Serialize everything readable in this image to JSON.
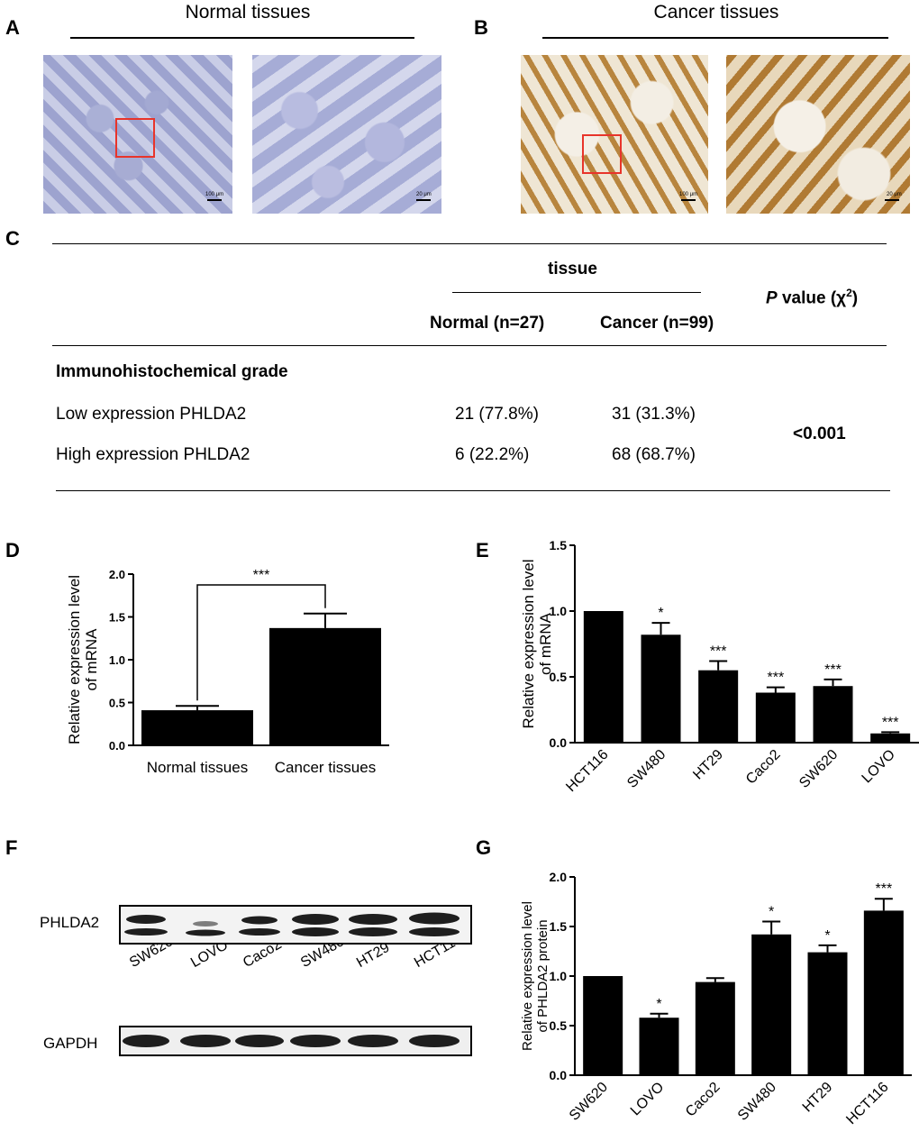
{
  "panels": {
    "A": {
      "letter": "A",
      "title": "Normal tissues",
      "scale_low": "100 μm",
      "scale_high": "20 μm"
    },
    "B": {
      "letter": "B",
      "title": "Cancer tissues",
      "scale_low": "100 μm",
      "scale_high": "20 μm"
    },
    "C": {
      "letter": "C"
    },
    "D": {
      "letter": "D"
    },
    "E": {
      "letter": "E"
    },
    "F": {
      "letter": "F"
    },
    "G": {
      "letter": "G"
    }
  },
  "table": {
    "group_header": "tissue",
    "col_normal": "Normal (n=27)",
    "col_cancer": "Cancer (n=99)",
    "p_header_italic": "P",
    "p_header_rest": " value (χ",
    "p_header_sup": "2",
    "p_header_close": ")",
    "section": "Immunohistochemical grade",
    "rows": [
      {
        "label": "Low expression PHLDA2",
        "normal": "21 (77.8%)",
        "cancer": "31 (31.3%)"
      },
      {
        "label": "High expression PHLDA2",
        "normal": "6 (22.2%)",
        "cancer": "68 (68.7%)"
      }
    ],
    "p_value": "<0.001"
  },
  "blot": {
    "lanes": [
      "SW620",
      "LOVO",
      "Caco2",
      "SW480",
      "HT29",
      "HCT116"
    ],
    "rows": [
      "PHLDA2",
      "GAPDH"
    ]
  },
  "chart_data": [
    {
      "id": "D",
      "type": "bar",
      "categories": [
        "Normal tissues",
        "Cancer tissues"
      ],
      "values": [
        0.41,
        1.37
      ],
      "errors": [
        0.05,
        0.17
      ],
      "ylabel": "Relative expression level of mRNA",
      "ylim": [
        0,
        2.0
      ],
      "yticks": [
        "0.0",
        "0.5",
        "1.0",
        "1.5",
        "2.0"
      ],
      "annotation": "***"
    },
    {
      "id": "E",
      "type": "bar",
      "categories": [
        "HCT116",
        "SW480",
        "HT29",
        "Caco2",
        "SW620",
        "LOVO"
      ],
      "values": [
        1.0,
        0.82,
        0.55,
        0.38,
        0.43,
        0.07
      ],
      "errors": [
        0,
        0.09,
        0.07,
        0.04,
        0.05,
        0.01
      ],
      "significance": [
        "",
        "*",
        "***",
        "***",
        "***",
        "***"
      ],
      "ylabel": "Relative expression level of mRNA",
      "ylim": [
        0,
        1.5
      ],
      "yticks": [
        "0.0",
        "0.5",
        "1.0",
        "1.5"
      ]
    },
    {
      "id": "G",
      "type": "bar",
      "categories": [
        "SW620",
        "LOVO",
        "Caco2",
        "SW480",
        "HT29",
        "HCT116"
      ],
      "values": [
        1.0,
        0.58,
        0.94,
        1.42,
        1.24,
        1.66
      ],
      "errors": [
        0,
        0.04,
        0.04,
        0.13,
        0.07,
        0.12
      ],
      "significance": [
        "",
        "*",
        "",
        "*",
        "*",
        "***"
      ],
      "ylabel": "Relative expression level of PHLDA2 protein",
      "ylim": [
        0,
        2.0
      ],
      "yticks": [
        "0.0",
        "0.5",
        "1.0",
        "1.5",
        "2.0"
      ]
    }
  ],
  "colors": {
    "roi": "#e8342a",
    "normal_stain": "#8f95c4",
    "cancer_stain": "#b8853e",
    "bar": "#000000"
  }
}
